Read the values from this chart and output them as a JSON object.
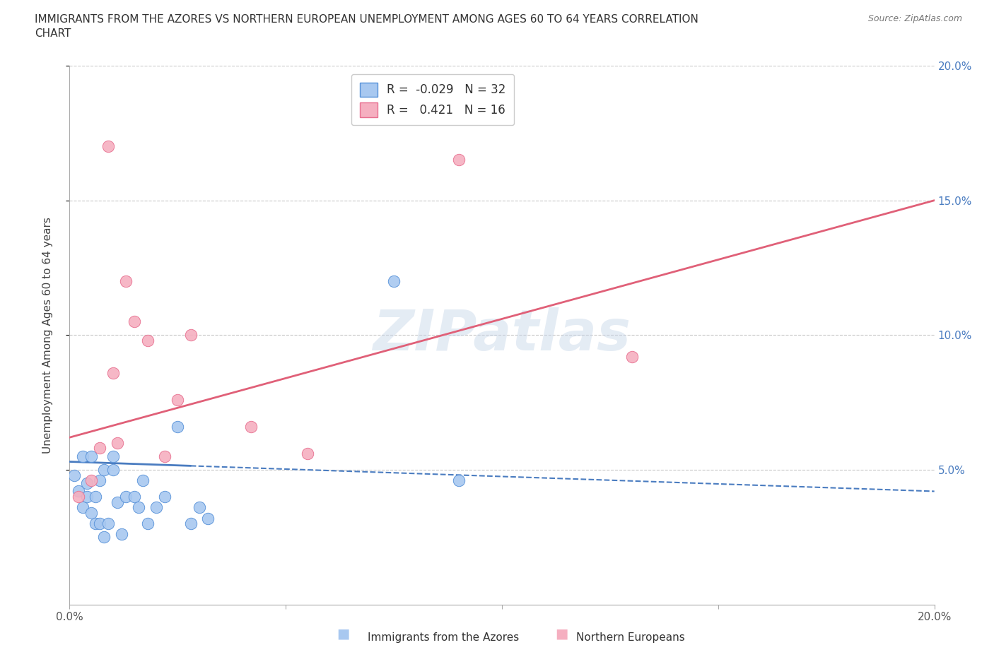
{
  "title_line1": "IMMIGRANTS FROM THE AZORES VS NORTHERN EUROPEAN UNEMPLOYMENT AMONG AGES 60 TO 64 YEARS CORRELATION",
  "title_line2": "CHART",
  "source": "Source: ZipAtlas.com",
  "ylabel": "Unemployment Among Ages 60 to 64 years",
  "xlim": [
    0.0,
    0.2
  ],
  "ylim": [
    0.0,
    0.2
  ],
  "xticks": [
    0.0,
    0.2
  ],
  "yticks": [
    0.05,
    0.1,
    0.15,
    0.2
  ],
  "xticklabels": [
    "0.0%",
    "20.0%"
  ],
  "yticklabels_right": [
    "5.0%",
    "10.0%",
    "15.0%",
    "20.0%"
  ],
  "background_color": "#ffffff",
  "grid_color": "#c8c8c8",
  "watermark": "ZIPatlas",
  "blue_R": -0.029,
  "blue_N": 32,
  "pink_R": 0.421,
  "pink_N": 16,
  "blue_color": "#a8c8f0",
  "pink_color": "#f5afc0",
  "blue_edge_color": "#5590d8",
  "pink_edge_color": "#e87090",
  "blue_line_color": "#4a7cc0",
  "pink_line_color": "#e06078",
  "blue_x": [
    0.001,
    0.002,
    0.003,
    0.003,
    0.004,
    0.004,
    0.005,
    0.005,
    0.006,
    0.006,
    0.007,
    0.007,
    0.008,
    0.008,
    0.009,
    0.01,
    0.01,
    0.011,
    0.012,
    0.013,
    0.015,
    0.016,
    0.017,
    0.018,
    0.02,
    0.022,
    0.025,
    0.028,
    0.03,
    0.032,
    0.075,
    0.09
  ],
  "blue_y": [
    0.048,
    0.042,
    0.055,
    0.036,
    0.04,
    0.045,
    0.055,
    0.034,
    0.04,
    0.03,
    0.046,
    0.03,
    0.05,
    0.025,
    0.03,
    0.055,
    0.05,
    0.038,
    0.026,
    0.04,
    0.04,
    0.036,
    0.046,
    0.03,
    0.036,
    0.04,
    0.066,
    0.03,
    0.036,
    0.032,
    0.12,
    0.046
  ],
  "pink_x": [
    0.002,
    0.005,
    0.007,
    0.009,
    0.01,
    0.011,
    0.013,
    0.015,
    0.018,
    0.022,
    0.025,
    0.028,
    0.042,
    0.055,
    0.09,
    0.13
  ],
  "pink_y": [
    0.04,
    0.046,
    0.058,
    0.17,
    0.086,
    0.06,
    0.12,
    0.105,
    0.098,
    0.055,
    0.076,
    0.1,
    0.066,
    0.056,
    0.165,
    0.092
  ],
  "blue_trend_x0": 0.0,
  "blue_trend_x_solid_end": 0.028,
  "blue_trend_x1": 0.2,
  "blue_trend_y0": 0.053,
  "blue_trend_y1": 0.042,
  "pink_trend_x0": 0.0,
  "pink_trend_x1": 0.2,
  "pink_trend_y0": 0.062,
  "pink_trend_y1": 0.15
}
